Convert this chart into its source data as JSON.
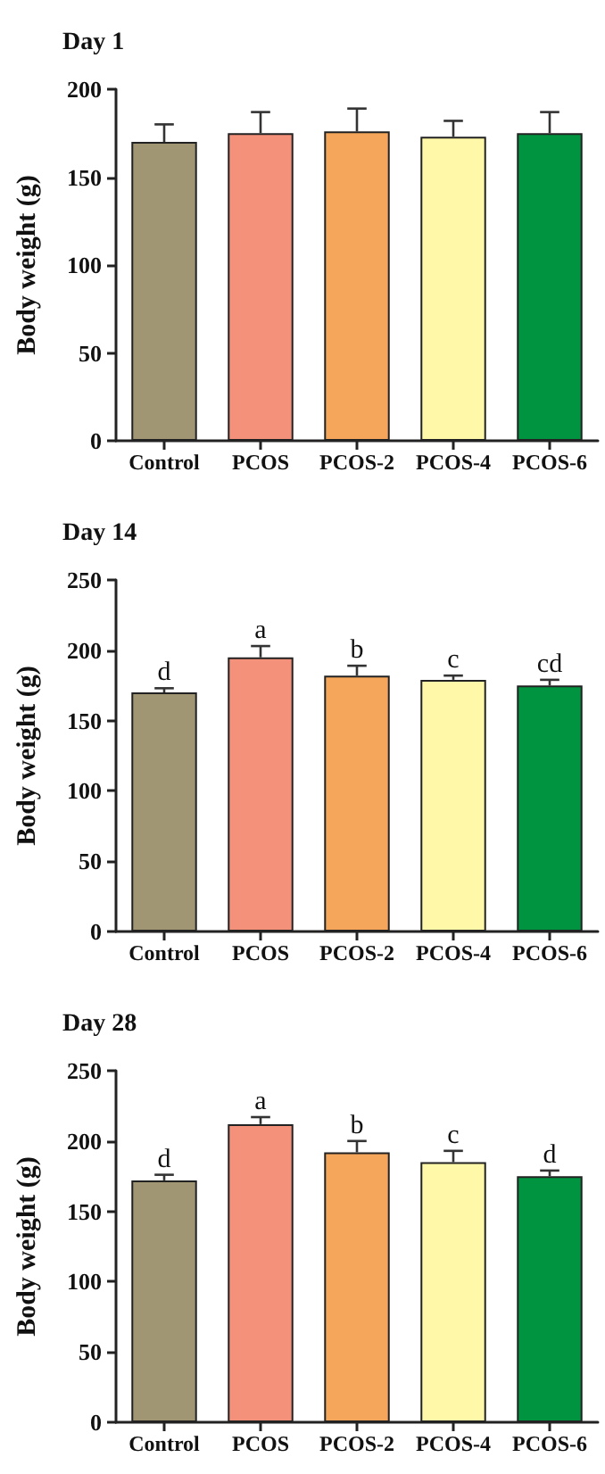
{
  "chart_data": [
    {
      "type": "bar",
      "title": "Day 1",
      "ylabel": "Body weight (g)",
      "categories": [
        "Control",
        "PCOS",
        "PCOS-2",
        "PCOS-4",
        "PCOS-6"
      ],
      "values": [
        170,
        175,
        176,
        173,
        175
      ],
      "colors": [
        "#a09673",
        "#f4917a",
        "#f5a65a",
        "#fff8a8",
        "#009440"
      ],
      "errors": [
        [
          170,
          180
        ],
        [
          175,
          187
        ],
        [
          176,
          189
        ],
        [
          173,
          182
        ],
        [
          175,
          187
        ]
      ],
      "ylim": [
        0,
        200
      ],
      "yticks": [
        0,
        50,
        100,
        150,
        200
      ],
      "grid": false
    },
    {
      "type": "bar",
      "title": "Day 14",
      "ylabel": "Body weight (g)",
      "categories": [
        "Control",
        "PCOS",
        "PCOS-2",
        "PCOS-4",
        "PCOS-6"
      ],
      "values": [
        170,
        195,
        182,
        179,
        175
      ],
      "colors": [
        "#a09673",
        "#f4917a",
        "#f5a65a",
        "#fff8a8",
        "#009440"
      ],
      "errors": [
        [
          170,
          173
        ],
        [
          195,
          203
        ],
        [
          182,
          189
        ],
        [
          179,
          182
        ],
        [
          175,
          179
        ]
      ],
      "ylim": [
        0,
        250
      ],
      "yticks": [
        0,
        50,
        100,
        150,
        200,
        250
      ],
      "grid": false,
      "annotations": [
        {
          "text": "d",
          "x": "Control",
          "y": 173
        },
        {
          "text": "a",
          "x": "PCOS",
          "y": 203
        },
        {
          "text": "b",
          "x": "PCOS-2",
          "y": 189
        },
        {
          "text": "c",
          "x": "PCOS-4",
          "y": 182
        },
        {
          "text": "cd",
          "x": "PCOS-6",
          "y": 179
        }
      ]
    },
    {
      "type": "bar",
      "title": "Day 28",
      "ylabel": "Body weight (g)",
      "categories": [
        "Control",
        "PCOS",
        "PCOS-2",
        "PCOS-4",
        "PCOS-6"
      ],
      "values": [
        172,
        212,
        192,
        185,
        175
      ],
      "colors": [
        "#a09673",
        "#f4917a",
        "#f5a65a",
        "#fff8a8",
        "#009440"
      ],
      "errors": [
        [
          172,
          176
        ],
        [
          212,
          217
        ],
        [
          192,
          200
        ],
        [
          185,
          193
        ],
        [
          175,
          179
        ]
      ],
      "ylim": [
        0,
        250
      ],
      "yticks": [
        0,
        50,
        100,
        150,
        200,
        250
      ],
      "grid": false,
      "annotations": [
        {
          "text": "d",
          "x": "Control",
          "y": 176
        },
        {
          "text": "a",
          "x": "PCOS",
          "y": 217
        },
        {
          "text": "b",
          "x": "PCOS-2",
          "y": 200
        },
        {
          "text": "c",
          "x": "PCOS-4",
          "y": 193
        },
        {
          "text": "d",
          "x": "PCOS-6",
          "y": 179
        }
      ]
    }
  ]
}
